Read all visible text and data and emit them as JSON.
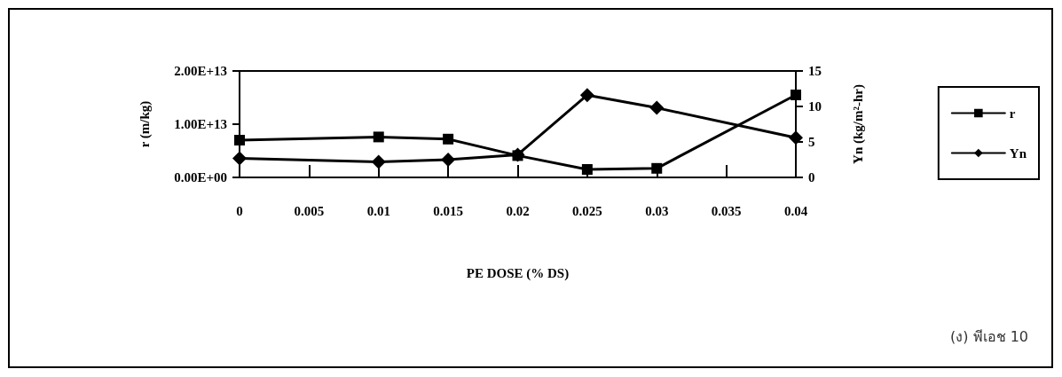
{
  "chart_data": {
    "type": "line",
    "xlabel": "PE DOSE (% DS)",
    "ylabel": "r (m/kg)",
    "y2label": "Yn (kg/m²-hr)",
    "x": [
      0,
      0.01,
      0.015,
      0.02,
      0.025,
      0.03,
      0.04
    ],
    "series": [
      {
        "name": "r",
        "color": "#000000",
        "marker": "square",
        "values": [
          7000000000000.0,
          7600000000000.0,
          7200000000000.0,
          4100000000000.0,
          1500000000000.0,
          1700000000000.0,
          15500000000000.0
        ]
      },
      {
        "name": "Yn",
        "color": "#000000",
        "marker": "diamond",
        "axis": "y2",
        "values": [
          2.7,
          2.2,
          2.5,
          3.2,
          11.6,
          9.8,
          5.6
        ]
      }
    ],
    "xlim": [
      0,
      0.04
    ],
    "xticks": [
      0,
      0.005,
      0.01,
      0.015,
      0.02,
      0.025,
      0.03,
      0.035,
      0.04
    ],
    "ylim": [
      0,
      20000000000000.0
    ],
    "yticks": [
      {
        "value": 0,
        "label": "0.00E+00"
      },
      {
        "value": 10000000000000.0,
        "label": "1.00E+13"
      },
      {
        "value": 20000000000000.0,
        "label": "2.00E+13"
      }
    ],
    "y2lim": [
      0,
      15
    ],
    "y2ticks": [
      0,
      5,
      10,
      15
    ],
    "grid": false,
    "legend": "right",
    "line_style": "solid",
    "annotations": [
      "(ง) พีเอช 10"
    ]
  }
}
